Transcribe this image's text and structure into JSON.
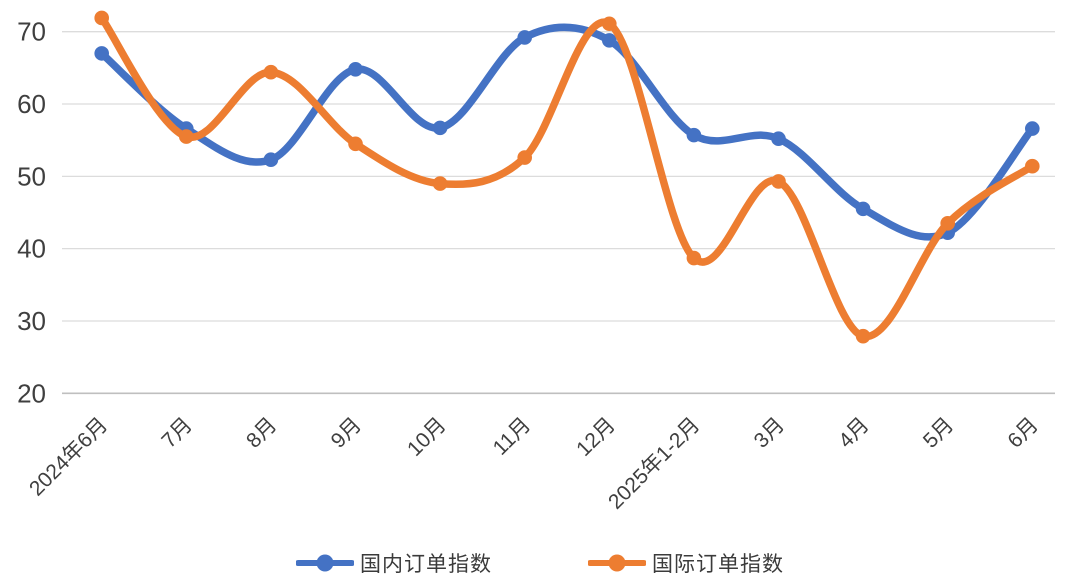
{
  "chart_data": {
    "type": "line",
    "title": "",
    "xlabel": "",
    "ylabel": "",
    "categories": [
      "2024年6月",
      "7月",
      "8月",
      "9月",
      "10月",
      "11月",
      "12月",
      "2025年1-2月",
      "3月",
      "4月",
      "5月",
      "6月"
    ],
    "series": [
      {
        "name": "国内订单指数",
        "color": "#4472C4",
        "values": [
          67.0,
          56.6,
          52.3,
          64.8,
          56.7,
          69.2,
          68.8,
          55.7,
          55.2,
          45.5,
          42.2,
          56.6
        ]
      },
      {
        "name": "国际订单指数",
        "color": "#ED7D31",
        "values": [
          71.9,
          55.5,
          64.4,
          54.5,
          49.0,
          52.6,
          71.1,
          38.7,
          49.3,
          27.9,
          43.5,
          51.4
        ]
      }
    ],
    "ylim": [
      20,
      70
    ],
    "yticks": [
      20,
      30,
      40,
      50,
      60,
      70
    ],
    "grid": "horizontal",
    "gridline_color": "#DCDCDC",
    "axis_line_color": "#BFBFBF",
    "tick_label_color": "#3f3f3f",
    "background": "#FFFFFF",
    "line_style": "smooth",
    "marker": "circle",
    "x_label_rotation_deg": 45,
    "legend_position": "bottom"
  }
}
